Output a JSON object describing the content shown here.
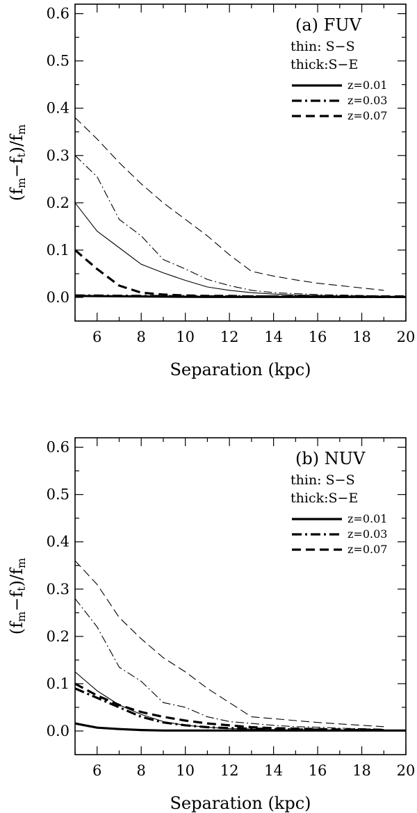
{
  "chart_data": [
    {
      "type": "line",
      "panel_label": "(a)",
      "band": "FUV",
      "title": "(a)  FUV",
      "notes": [
        "thin: S−S",
        "thick:S−E"
      ],
      "xlabel": "Separation (kpc)",
      "ylabel": "(fm−ft)/fm",
      "xlim": [
        5,
        20
      ],
      "ylim": [
        -0.05,
        0.62
      ],
      "xticks": [
        6,
        8,
        10,
        12,
        14,
        16,
        18,
        20
      ],
      "yticks": [
        0.0,
        0.1,
        0.2,
        0.3,
        0.4,
        0.5,
        0.6
      ],
      "ytick_labels": [
        "0.0",
        "0.1",
        "0.2",
        "0.3",
        "0.4",
        "0.5",
        "0.6"
      ],
      "legend": [
        {
          "label": "z=0.01",
          "style": "solid"
        },
        {
          "label": "z=0.03",
          "style": "dashdot"
        },
        {
          "label": "z=0.07",
          "style": "dashed"
        }
      ],
      "series": [
        {
          "z": "z=0.01",
          "pair": "S-S",
          "weight": "thin",
          "style": "solid",
          "x": [
            5,
            6,
            7,
            8,
            9,
            10,
            11,
            12,
            13,
            14,
            15,
            16,
            17,
            18,
            19,
            20
          ],
          "y": [
            0.2,
            0.14,
            0.105,
            0.07,
            0.052,
            0.036,
            0.022,
            0.015,
            0.01,
            0.007,
            0.005,
            0.004,
            0.003,
            0.003,
            0.002,
            0.002
          ]
        },
        {
          "z": "z=0.03",
          "pair": "S-S",
          "weight": "thin",
          "style": "dashdot",
          "x": [
            5,
            6,
            7,
            8,
            9,
            10,
            11,
            12,
            13,
            14,
            15,
            16,
            17,
            18,
            19
          ],
          "y": [
            0.3,
            0.255,
            0.165,
            0.13,
            0.08,
            0.06,
            0.038,
            0.025,
            0.015,
            0.01,
            0.008,
            0.006,
            0.005,
            0.004,
            0.003
          ]
        },
        {
          "z": "z=0.07",
          "pair": "S-S",
          "weight": "thin",
          "style": "dashed",
          "x": [
            5,
            6,
            7,
            8,
            9,
            10,
            11,
            12,
            13,
            14,
            15,
            16,
            17,
            18,
            19
          ],
          "y": [
            0.38,
            0.335,
            0.285,
            0.24,
            0.2,
            0.165,
            0.13,
            0.09,
            0.055,
            0.045,
            0.037,
            0.03,
            0.025,
            0.02,
            0.015
          ]
        },
        {
          "z": "z=0.01",
          "pair": "S-E",
          "weight": "thick",
          "style": "solid",
          "x": [
            5,
            8,
            11,
            14,
            17,
            20
          ],
          "y": [
            0.003,
            0.002,
            0.001,
            0.001,
            0.001,
            0.001
          ]
        },
        {
          "z": "z=0.03",
          "pair": "S-E",
          "weight": "thick",
          "style": "dashdot",
          "x": [
            5,
            8,
            11,
            14,
            17,
            20
          ],
          "y": [
            0.004,
            0.003,
            0.002,
            0.002,
            0.001,
            0.001
          ]
        },
        {
          "z": "z=0.07",
          "pair": "S-E",
          "weight": "thick",
          "style": "dashed",
          "x": [
            5,
            6,
            7,
            8,
            9,
            10,
            11,
            12,
            13,
            14,
            15,
            16,
            17,
            18,
            19,
            20
          ],
          "y": [
            0.1,
            0.06,
            0.025,
            0.01,
            0.006,
            0.004,
            0.003,
            0.003,
            0.002,
            0.002,
            0.002,
            0.002,
            0.002,
            0.002,
            0.002,
            0.002
          ]
        }
      ]
    },
    {
      "type": "line",
      "panel_label": "(b)",
      "band": "NUV",
      "title": "(b)  NUV",
      "notes": [
        "thin: S−S",
        "thick:S−E"
      ],
      "xlabel": "Separation (kpc)",
      "ylabel": "(fm−ft)/fm",
      "xlim": [
        5,
        20
      ],
      "ylim": [
        -0.05,
        0.62
      ],
      "xticks": [
        6,
        8,
        10,
        12,
        14,
        16,
        18,
        20
      ],
      "yticks": [
        0.0,
        0.1,
        0.2,
        0.3,
        0.4,
        0.5,
        0.6
      ],
      "ytick_labels": [
        "0.0",
        "0.1",
        "0.2",
        "0.3",
        "0.4",
        "0.5",
        "0.6"
      ],
      "legend": [
        {
          "label": "z=0.01",
          "style": "solid"
        },
        {
          "label": "z=0.03",
          "style": "dashdot"
        },
        {
          "label": "z=0.07",
          "style": "dashed"
        }
      ],
      "series": [
        {
          "z": "z=0.01",
          "pair": "S-S",
          "weight": "thin",
          "style": "solid",
          "x": [
            5,
            6,
            7,
            8,
            9,
            10,
            11,
            12,
            13,
            14,
            15,
            16,
            17,
            18,
            19,
            20
          ],
          "y": [
            0.125,
            0.085,
            0.055,
            0.035,
            0.02,
            0.012,
            0.008,
            0.005,
            0.004,
            0.003,
            0.002,
            0.002,
            0.002,
            0.001,
            0.001,
            0.001
          ]
        },
        {
          "z": "z=0.03",
          "pair": "S-S",
          "weight": "thin",
          "style": "dashdot",
          "x": [
            5,
            6,
            7,
            8,
            9,
            10,
            11,
            12,
            13,
            14,
            15,
            16,
            17,
            18,
            19
          ],
          "y": [
            0.28,
            0.22,
            0.135,
            0.105,
            0.06,
            0.05,
            0.03,
            0.02,
            0.016,
            0.012,
            0.009,
            0.008,
            0.006,
            0.005,
            0.004
          ]
        },
        {
          "z": "z=0.07",
          "pair": "S-S",
          "weight": "thin",
          "style": "dashed",
          "x": [
            5,
            6,
            7,
            8,
            9,
            10,
            11,
            12,
            13,
            14,
            15,
            16,
            17,
            18,
            19
          ],
          "y": [
            0.36,
            0.31,
            0.24,
            0.195,
            0.155,
            0.125,
            0.09,
            0.06,
            0.03,
            0.026,
            0.022,
            0.018,
            0.015,
            0.012,
            0.009
          ]
        },
        {
          "z": "z=0.01",
          "pair": "S-E",
          "weight": "thick",
          "style": "solid",
          "x": [
            5,
            6,
            7,
            8,
            9,
            10,
            12,
            14,
            16,
            18,
            20
          ],
          "y": [
            0.016,
            0.007,
            0.004,
            0.002,
            0.001,
            0.001,
            0.001,
            0.001,
            0.001,
            0.001,
            0.001
          ]
        },
        {
          "z": "z=0.03",
          "pair": "S-E",
          "weight": "thick",
          "style": "dashdot",
          "x": [
            5,
            6,
            7,
            8,
            9,
            10,
            11,
            12,
            13,
            14,
            15,
            16,
            17,
            18,
            19
          ],
          "y": [
            0.09,
            0.07,
            0.05,
            0.03,
            0.018,
            0.012,
            0.008,
            0.006,
            0.005,
            0.004,
            0.003,
            0.003,
            0.002,
            0.002,
            0.002
          ]
        },
        {
          "z": "z=0.07",
          "pair": "S-E",
          "weight": "thick",
          "style": "dashed",
          "x": [
            5,
            6,
            7,
            8,
            9,
            10,
            11,
            12,
            13,
            14,
            15,
            16,
            17,
            18,
            19
          ],
          "y": [
            0.1,
            0.075,
            0.055,
            0.04,
            0.03,
            0.022,
            0.016,
            0.012,
            0.008,
            0.006,
            0.005,
            0.004,
            0.003,
            0.003,
            0.002
          ]
        }
      ]
    }
  ]
}
